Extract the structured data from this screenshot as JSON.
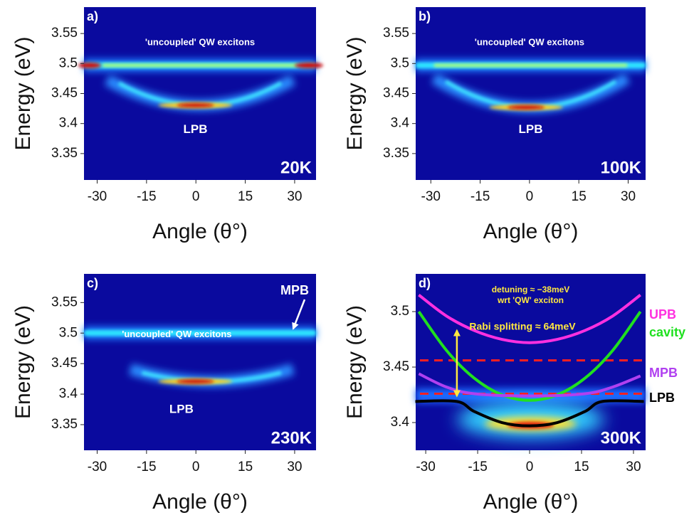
{
  "chart_data": [
    {
      "type": "heatmap",
      "panel_label": "a)",
      "temperature": "20K",
      "xlabel": "Angle (θ°)",
      "ylabel": "Energy (eV)",
      "xlim": [
        -34,
        36.5
      ],
      "ylim": [
        3.306,
        3.594
      ],
      "xticks": [
        -30,
        -15,
        0,
        15,
        30
      ],
      "yticks": [
        3.35,
        3.4,
        3.45,
        3.5,
        3.55
      ],
      "band_label": "'uncoupled' QW excitons",
      "branch_label": "LPB"
    },
    {
      "type": "heatmap",
      "panel_label": "b)",
      "temperature": "100K",
      "xlabel": "Angle (θ°)",
      "ylabel": "Energy (eV)",
      "xlim": [
        -34.6,
        35.3
      ],
      "ylim": [
        3.306,
        3.594
      ],
      "xticks": [
        -30,
        -15,
        0,
        15,
        30
      ],
      "yticks": [
        3.35,
        3.4,
        3.45,
        3.5,
        3.55
      ],
      "band_label": "'uncoupled' QW excitons",
      "branch_label": "LPB"
    },
    {
      "type": "heatmap",
      "panel_label": "c)",
      "temperature": "230K",
      "xlabel": "Angle (θ°)",
      "ylabel": "Energy (eV)",
      "xlim": [
        -34,
        36.5
      ],
      "ylim": [
        3.308,
        3.597
      ],
      "xticks": [
        -30,
        -15,
        0,
        15,
        30
      ],
      "yticks": [
        3.35,
        3.4,
        3.45,
        3.5,
        3.55
      ],
      "band_label": "'uncoupled' QW excitons",
      "branch_label": "LPB",
      "arrow_label": "MPB"
    },
    {
      "type": "line",
      "panel_label": "d)",
      "temperature": "300K",
      "xlabel": "Angle (θ°)",
      "ylabel": "Energy (eV)",
      "xlim": [
        -32.9,
        33.5
      ],
      "ylim": [
        3.375,
        3.534
      ],
      "xticks": [
        -30,
        -15,
        0,
        15,
        30
      ],
      "yticks": [
        3.4,
        3.45,
        3.5
      ],
      "notes": [
        "detuning ≈ −38meV",
        "wrt 'QW' exciton"
      ],
      "rabi_label": "Rabi splitting ≈ 64meV",
      "rabi_arrow": {
        "x": -21,
        "from": 3.424,
        "to": 3.483
      },
      "hlines": [
        3.456,
        3.426
      ],
      "hline_color": "#ff2020",
      "series": [
        {
          "name": "UPB",
          "color": "#ff30e0",
          "x": [
            -32,
            -24,
            -16,
            -8,
            0,
            8,
            16,
            24,
            32
          ],
          "values": [
            3.515,
            3.496,
            3.483,
            3.475,
            3.472,
            3.475,
            3.483,
            3.496,
            3.515
          ]
        },
        {
          "name": "cavity",
          "color": "#20e020",
          "x": [
            -32,
            -24,
            -16,
            -8,
            0,
            8,
            16,
            24,
            32
          ],
          "values": [
            3.5,
            3.465,
            3.44,
            3.425,
            3.42,
            3.425,
            3.44,
            3.465,
            3.5
          ]
        },
        {
          "name": "MPB",
          "color": "#b040f0",
          "x": [
            -32,
            -24,
            -16,
            0,
            16,
            24,
            32
          ],
          "values": [
            3.444,
            3.432,
            3.426,
            3.424,
            3.426,
            3.432,
            3.442
          ]
        },
        {
          "name": "LPB",
          "color": "#000000",
          "x": [
            -33,
            -21,
            -16,
            -8,
            0,
            8,
            16,
            21,
            33
          ],
          "values": [
            3.419,
            3.419,
            3.41,
            3.4,
            3.397,
            3.4,
            3.41,
            3.419,
            3.419
          ]
        }
      ]
    }
  ]
}
